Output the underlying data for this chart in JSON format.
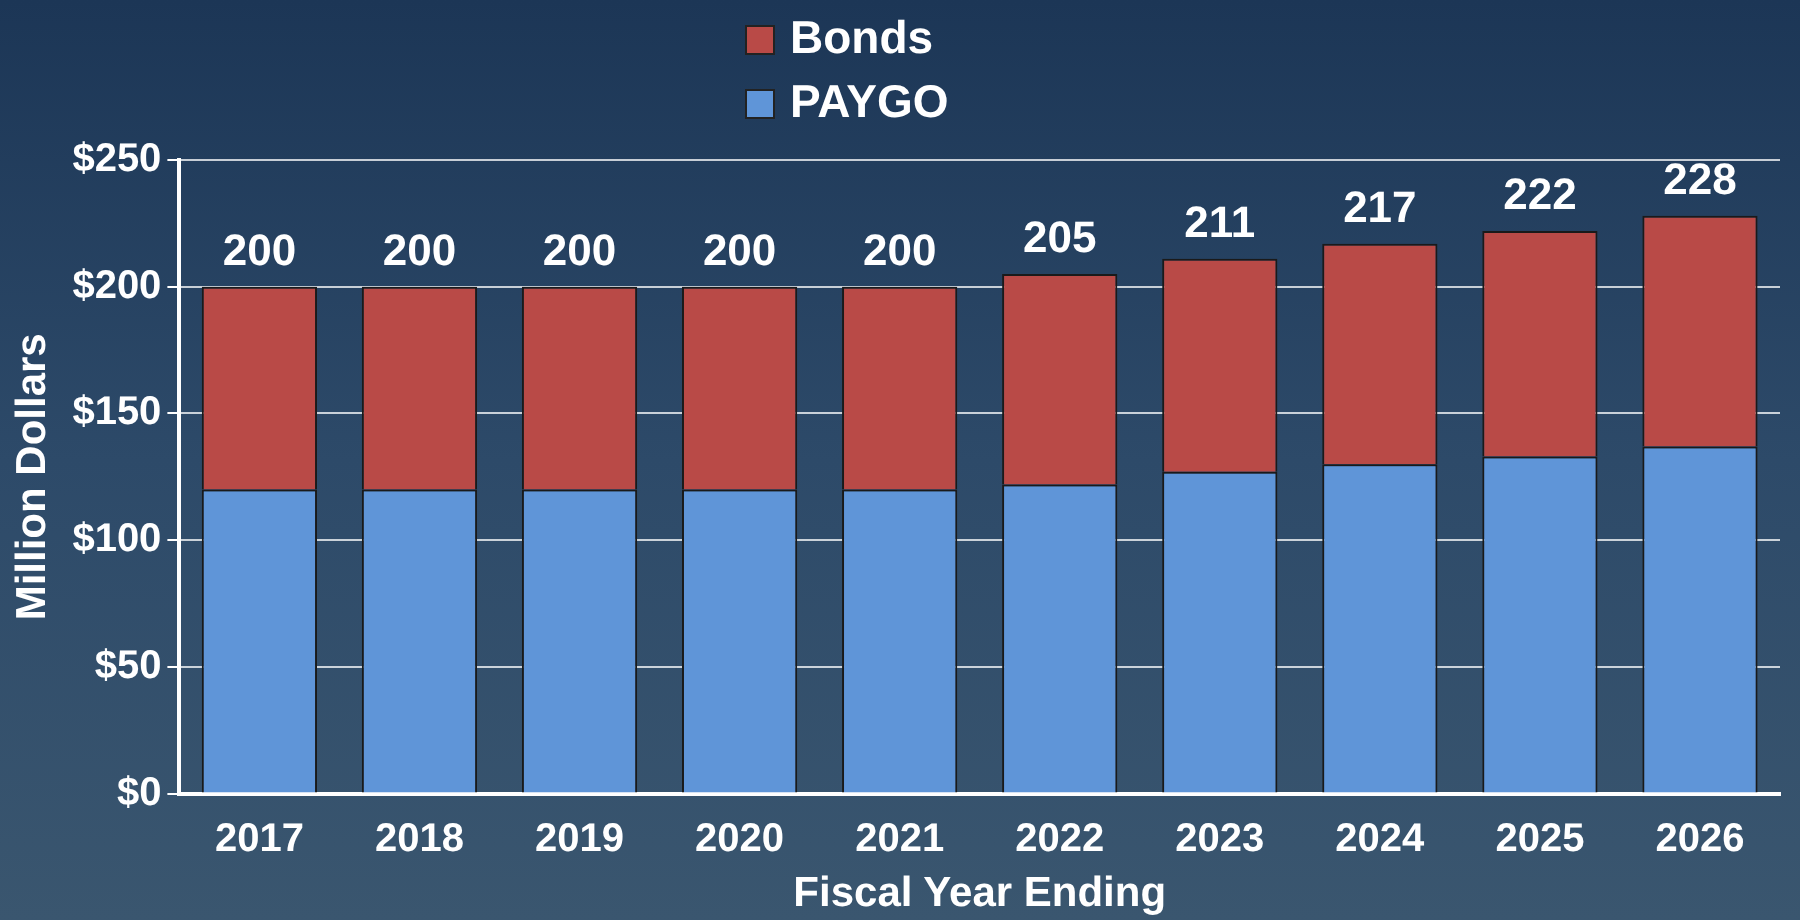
{
  "chart_data": {
    "type": "bar",
    "stacked": true,
    "xlabel": "Fiscal Year Ending",
    "ylabel": "Million Dollars",
    "categories": [
      "2017",
      "2018",
      "2019",
      "2020",
      "2021",
      "2022",
      "2023",
      "2024",
      "2025",
      "2026"
    ],
    "series": [
      {
        "name": "PAYGO",
        "color": "#5f95d8",
        "values": [
          120,
          120,
          120,
          120,
          120,
          122,
          127,
          130,
          133,
          137
        ]
      },
      {
        "name": "Bonds",
        "color": "#b94a47",
        "values": [
          80,
          80,
          80,
          80,
          80,
          83,
          84,
          87,
          89,
          91
        ]
      }
    ],
    "totals": [
      "200",
      "200",
      "200",
      "200",
      "200",
      "205",
      "211",
      "217",
      "222",
      "228"
    ],
    "ylim": [
      0,
      250
    ],
    "yticks": [
      {
        "value": 0,
        "label": "$0"
      },
      {
        "value": 50,
        "label": "$50"
      },
      {
        "value": 100,
        "label": "$100"
      },
      {
        "value": 150,
        "label": "$150"
      },
      {
        "value": 200,
        "label": "$200"
      },
      {
        "value": 250,
        "label": "$250"
      }
    ],
    "grid": "y",
    "legend": "top"
  }
}
